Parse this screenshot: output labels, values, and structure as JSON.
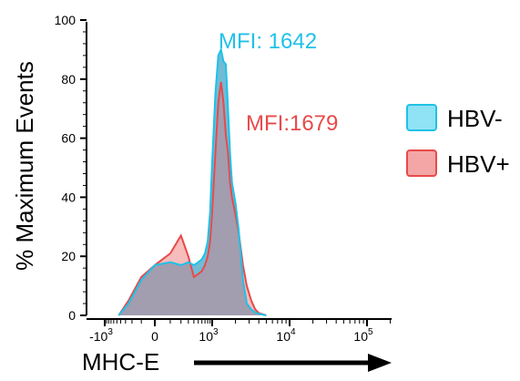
{
  "chart_data": {
    "type": "area",
    "ylabel": "% Maximum Events",
    "xlabel": "MHC-E",
    "x_scale": "biexponential",
    "xlim": [
      -2000,
      200000
    ],
    "ylim": [
      0,
      100
    ],
    "y_ticks": [
      0,
      20,
      40,
      60,
      80,
      100
    ],
    "x_ticks": [
      {
        "value": -1000,
        "base": "-10",
        "exp": "3"
      },
      {
        "value": 0,
        "base": "0",
        "exp": ""
      },
      {
        "value": 1000,
        "base": "10",
        "exp": "3"
      },
      {
        "value": 10000,
        "base": "10",
        "exp": "4"
      },
      {
        "value": 100000,
        "base": "10",
        "exp": "5"
      }
    ],
    "series": [
      {
        "name": "HBV-",
        "color": "#1fc1e8",
        "fill": "#8fe3f5",
        "annotation": "MFI: 1642",
        "x": [
          -450,
          -250,
          -100,
          0,
          100,
          200,
          300,
          400,
          500,
          600,
          700,
          800,
          900,
          1000,
          1100,
          1200,
          1300,
          1400,
          1500,
          1600,
          1700,
          1800,
          2000,
          2200,
          2500,
          2800,
          3200,
          3600,
          4000,
          5000
        ],
        "values": [
          0,
          4,
          12,
          17,
          18,
          17,
          18,
          17,
          18,
          19,
          21,
          25,
          35,
          52,
          75,
          88,
          90,
          86,
          85,
          70,
          55,
          45,
          38,
          29,
          12,
          4,
          2,
          1,
          0.5,
          0
        ]
      },
      {
        "name": "HBV+",
        "color": "#e84a4a",
        "fill": "#f4a6a6",
        "annotation": "MFI:1679",
        "x": [
          -450,
          -250,
          -100,
          0,
          100,
          200,
          300,
          400,
          500,
          600,
          700,
          800,
          900,
          1000,
          1100,
          1200,
          1300,
          1400,
          1500,
          1600,
          1700,
          1800,
          2000,
          2200,
          2500,
          2800,
          3200,
          3600,
          4000,
          5000
        ],
        "values": [
          0,
          5,
          13,
          17,
          21,
          27,
          20,
          13,
          14,
          15,
          17,
          20,
          25,
          35,
          55,
          72,
          79,
          72,
          61,
          55,
          45,
          40,
          34,
          28,
          17,
          10,
          5,
          2,
          0.8,
          0
        ]
      }
    ],
    "legend_position": "right",
    "axis_arrow": true
  }
}
